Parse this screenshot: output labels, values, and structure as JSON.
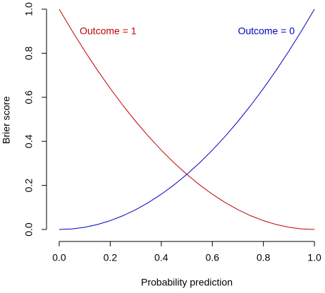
{
  "chart_data": {
    "type": "line",
    "xlabel": "Probability prediction",
    "ylabel": "Brier score",
    "x": [
      0,
      0.05,
      0.1,
      0.15,
      0.2,
      0.25,
      0.3,
      0.35,
      0.4,
      0.45,
      0.5,
      0.55,
      0.6,
      0.65,
      0.7,
      0.75,
      0.8,
      0.85,
      0.9,
      0.95,
      1
    ],
    "series": [
      {
        "name": "Outcome = 1",
        "color": "#c00000",
        "values": [
          1,
          0.9025,
          0.81,
          0.7225,
          0.64,
          0.5625,
          0.49,
          0.4225,
          0.36,
          0.3025,
          0.25,
          0.2025,
          0.16,
          0.1225,
          0.09,
          0.0625,
          0.04,
          0.0225,
          0.01,
          0.0025,
          0
        ]
      },
      {
        "name": "Outcome = 0",
        "color": "#0000c0",
        "values": [
          0,
          0.0025,
          0.01,
          0.0225,
          0.04,
          0.0625,
          0.09,
          0.1225,
          0.16,
          0.2025,
          0.25,
          0.3025,
          0.36,
          0.4225,
          0.49,
          0.5625,
          0.64,
          0.7225,
          0.81,
          0.9025,
          1
        ]
      }
    ],
    "xlim": [
      -0.04,
      1.04
    ],
    "ylim": [
      -0.04,
      1.04
    ],
    "xticks": [
      {
        "value": 0,
        "label": "0.0"
      },
      0.2,
      0.4,
      0.6,
      0.8,
      {
        "value": 1,
        "label": "1.0"
      }
    ],
    "yticks": [
      {
        "value": 0,
        "label": "0.0"
      },
      0.2,
      0.4,
      0.6,
      0.8,
      {
        "value": 1,
        "label": "1.0"
      }
    ]
  }
}
